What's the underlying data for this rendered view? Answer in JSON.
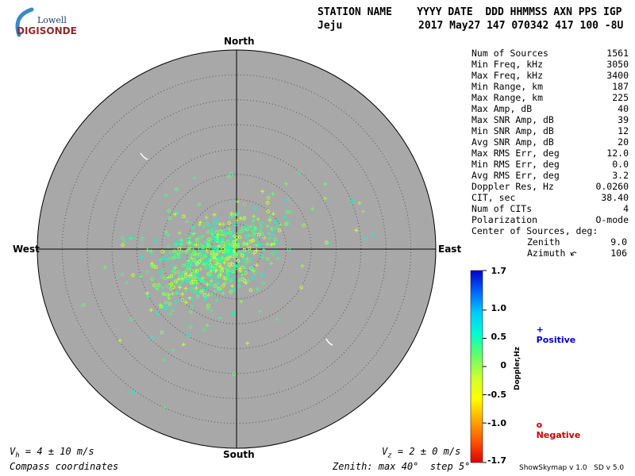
{
  "logo": {
    "line1": "Lowell",
    "line2": "DIGISONDE"
  },
  "header": {
    "col_labels": "STATION NAME    YYYY DATE  DDD HHMMSS AXN PPS IGP",
    "station": "Jeju",
    "values": "2017 May27 147 070342 417 100 -8U"
  },
  "directions": {
    "north": "North",
    "south": "South",
    "east": "East",
    "west": "West"
  },
  "stats": [
    {
      "label": "Num of Sources",
      "value": "1561"
    },
    {
      "label": "Min Freq, kHz",
      "value": "3050"
    },
    {
      "label": "Max Freq, kHz",
      "value": "3400"
    },
    {
      "label": "Min Range, km",
      "value": "187"
    },
    {
      "label": "Max Range, km",
      "value": "225"
    },
    {
      "label": "Max Amp, dB",
      "value": "40"
    },
    {
      "label": "Max SNR Amp, dB",
      "value": "39"
    },
    {
      "label": "Min SNR Amp, dB",
      "value": "12"
    },
    {
      "label": "Avg SNR Amp, dB",
      "value": "20"
    },
    {
      "label": "Max RMS Err, deg",
      "value": "12.0"
    },
    {
      "label": "Min RMS Err, deg",
      "value": "0.0"
    },
    {
      "label": "Avg RMS Err, deg",
      "value": "3.2"
    },
    {
      "label": "Doppler Res, Hz",
      "value": "0.0260"
    },
    {
      "label": "CIT, sec",
      "value": "38.40"
    },
    {
      "label": "Num of CITs",
      "value": "4"
    },
    {
      "label": "Polarization",
      "value": "O-mode"
    }
  ],
  "center": {
    "title": "Center of Sources, deg:",
    "zenith_label": "Zenith",
    "zenith_value": "9.0",
    "azimuth_label": "Azimuth",
    "azimuth_value": "106"
  },
  "colorbar": {
    "label": "Doppler,Hz",
    "ticks": [
      "1.7",
      "1.0",
      "0.5",
      "0",
      "-0.5",
      "-1.0",
      "-1.7"
    ]
  },
  "legend": {
    "positive": "Positive",
    "negative": "Negative",
    "positive_color": "#0000cc",
    "negative_color": "#cc0000"
  },
  "footer": {
    "vh_prefix": "V",
    "vh_sub": "h",
    "vh_value": " = 4 ± 10 m/s",
    "vz_prefix": "V",
    "vz_sub": "z",
    "vz_value": " = 2 ± 0 m/s",
    "coords": "Compass coordinates",
    "zenith": "Zenith: max 40°  step 5°",
    "version": "ShowSkymap v 1.0   SD v 5.0"
  },
  "chart_data": {
    "type": "scatter",
    "projection": "polar-skymap",
    "zenith_max_deg": 40,
    "zenith_step_deg": 5,
    "doppler_range_hz": [
      -1.7,
      1.7
    ],
    "background_color": "#a8a8a8",
    "cluster": {
      "center_zenith_deg": 9.0,
      "center_azimuth_deg": 106,
      "num_sources": 1561
    },
    "colorbar_colors": [
      "#0000cc",
      "#0066ff",
      "#00ccff",
      "#00ffcc",
      "#66ff66",
      "#ccff33",
      "#ffff00",
      "#ffaa00",
      "#ff5500",
      "#dd0000"
    ]
  }
}
